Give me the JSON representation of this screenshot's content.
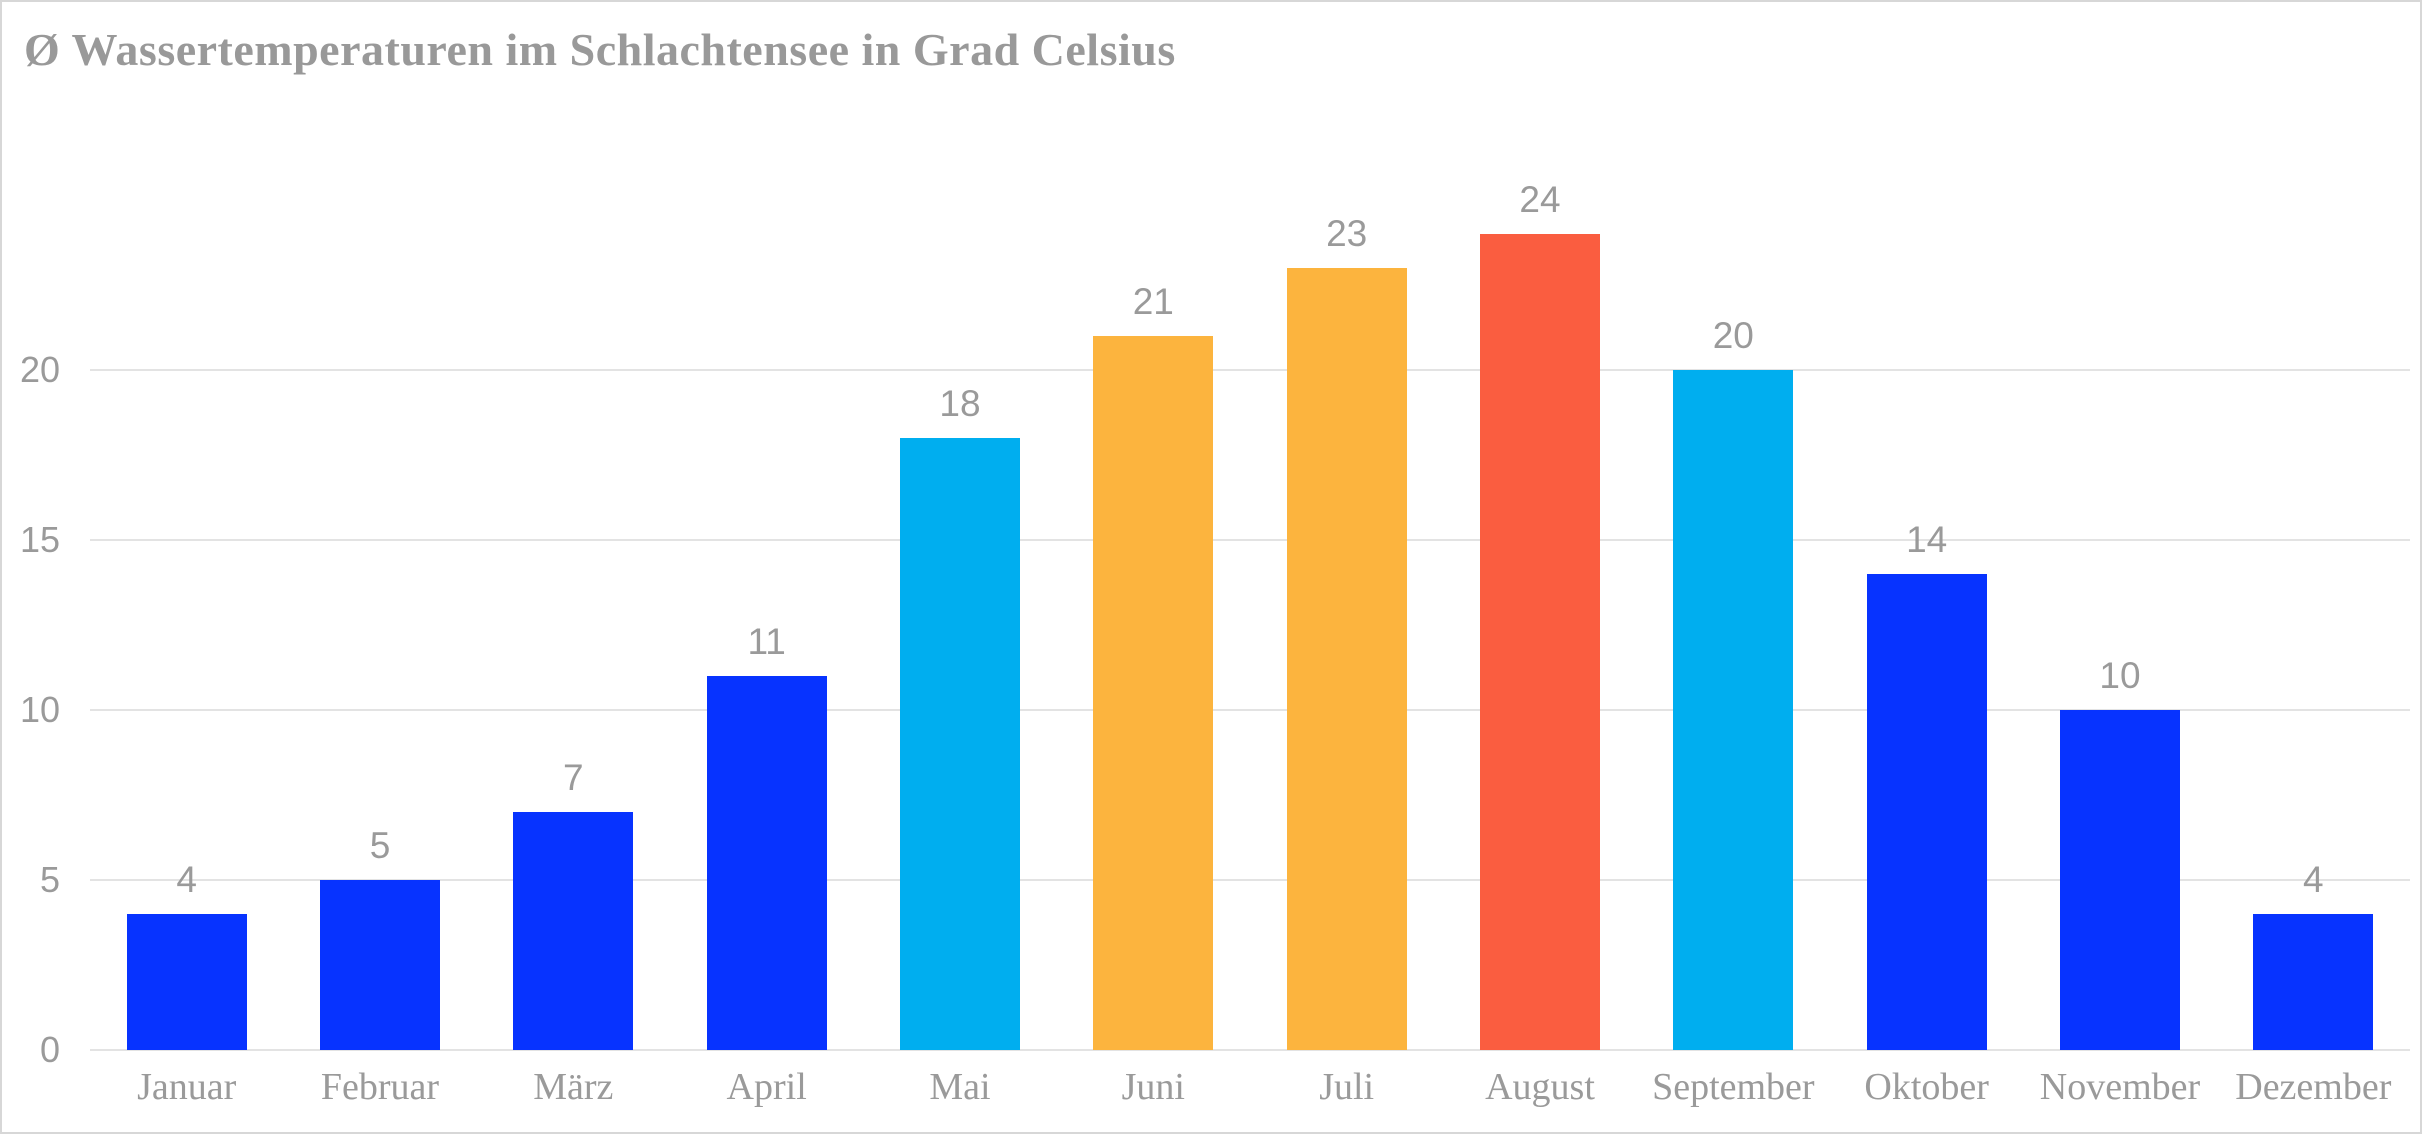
{
  "page": {
    "background_color": "#ffffff",
    "border_color": "#d7d7d7"
  },
  "chart_data": {
    "type": "bar",
    "title": "Ø Wassertemperaturen im Schlachtensee in Grad Celsius",
    "categories": [
      "Januar",
      "Februar",
      "März",
      "April",
      "Mai",
      "Juni",
      "Juli",
      "August",
      "September",
      "Oktober",
      "November",
      "Dezember"
    ],
    "values": [
      4,
      5,
      7,
      11,
      18,
      21,
      23,
      24,
      20,
      14,
      10,
      4
    ],
    "bar_colors": [
      "#0733ff",
      "#0733ff",
      "#0733ff",
      "#0733ff",
      "#00aeef",
      "#fcb43e",
      "#fcb43e",
      "#fa5d40",
      "#00aeef",
      "#0733ff",
      "#0733ff",
      "#0733ff"
    ],
    "yticks": [
      0,
      5,
      10,
      15,
      20
    ],
    "ylim": [
      0,
      25
    ],
    "xlabel": "",
    "ylabel": "",
    "grid": "horizontal",
    "legend": "none",
    "data_labels": true,
    "title_color": "#999999",
    "text_color": "#9a9a9a",
    "gridline_color": "#e3e3e3"
  }
}
